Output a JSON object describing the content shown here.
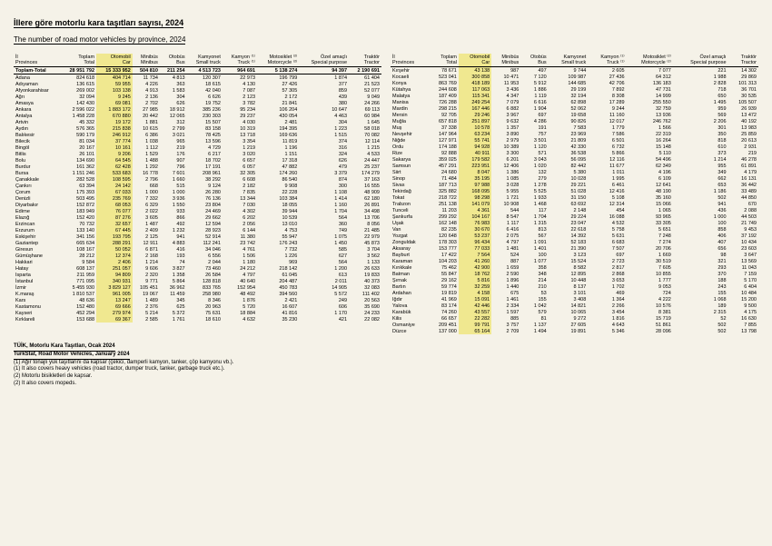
{
  "title_tr": "İllere göre motorlu kara taşıtları sayısı, 2024",
  "title_en": "The number of road motor vehicles by province, 2024",
  "headers": [
    {
      "tr": "İl",
      "en": "Provinces"
    },
    {
      "tr": "Toplam",
      "en": "Total"
    },
    {
      "tr": "Otomobil",
      "en": "Car"
    },
    {
      "tr": "Minibüs",
      "en": "Minibus"
    },
    {
      "tr": "Otobüs",
      "en": "Bus"
    },
    {
      "tr": "Kamyonet",
      "en": "Small truck"
    },
    {
      "tr": "Kamyon ⁽¹⁾",
      "en": "Truck ⁽¹⁾"
    },
    {
      "tr": "Motosiklet ⁽²⁾",
      "en": "Motorcycle ⁽²⁾"
    },
    {
      "tr": "Özel amaçlı",
      "en": "Special purpose"
    },
    {
      "tr": "Traktör",
      "en": "Tractor"
    }
  ],
  "highlight_col": 2,
  "rows_left": [
    {
      "cells": [
        "Toplam-Total",
        "28 951 792",
        "15 333 952",
        "504 810",
        "211 254",
        "4 513 723",
        "964 691",
        "5 138 274",
        "94 397",
        "2 190 691"
      ],
      "total": true
    },
    {
      "cells": [
        "Adana",
        "824 618",
        "404 714",
        "11 734",
        "4 813",
        "120 307",
        "22 973",
        "196 799",
        "1 874",
        "61 404"
      ]
    },
    {
      "cells": [
        "Adıyaman",
        "136 615",
        "59 955",
        "4 226",
        "363",
        "18 615",
        "4 130",
        "27 426",
        "377",
        "21 523"
      ]
    },
    {
      "cells": [
        "Afyonkarahisar",
        "269 002",
        "103 138",
        "4 913",
        "1 583",
        "42 040",
        "7 087",
        "57 305",
        "859",
        "52 077"
      ]
    },
    {
      "cells": [
        "Ağrı",
        "32 094",
        "9 245",
        "2 136",
        "304",
        "6 626",
        "2 123",
        "2 172",
        "439",
        "9 049"
      ]
    },
    {
      "cells": [
        "Amasya",
        "142 430",
        "69 081",
        "2 702",
        "626",
        "19 752",
        "3 782",
        "21 841",
        "380",
        "24 266"
      ]
    },
    {
      "cells": [
        "Ankara",
        "2 596 022",
        "1 883 172",
        "27 985",
        "18 912",
        "385 236",
        "95 234",
        "106 204",
        "10 647",
        "69 113"
      ]
    },
    {
      "cells": [
        "Antalya",
        "1 458 228",
        "670 880",
        "20 442",
        "12 065",
        "230 303",
        "29 237",
        "430 054",
        "4 463",
        "60 984"
      ]
    },
    {
      "cells": [
        "Artvin",
        "45 332",
        "19 172",
        "1 881",
        "312",
        "15 507",
        "4 030",
        "2 481",
        "304",
        "1 645"
      ]
    },
    {
      "cells": [
        "Aydın",
        "576 365",
        "215 838",
        "10 615",
        "2 799",
        "83 158",
        "10 319",
        "194 395",
        "1 223",
        "58 018"
      ]
    },
    {
      "cells": [
        "Balıkesir",
        "590 179",
        "246 912",
        "6 386",
        "3 021",
        "78 425",
        "13 718",
        "169 636",
        "1 515",
        "70 082"
      ]
    },
    {
      "cells": [
        "Bilecik",
        "81 034",
        "37 774",
        "1 038",
        "965",
        "13 596",
        "3 354",
        "11 819",
        "374",
        "12 114"
      ]
    },
    {
      "cells": [
        "Bingöl",
        "20 167",
        "10 161",
        "1 112",
        "219",
        "4 729",
        "1 219",
        "1 196",
        "316",
        "1 215"
      ]
    },
    {
      "cells": [
        "Bitlis",
        "26 101",
        "9 206",
        "1 529",
        "176",
        "6 217",
        "3 020",
        "1 151",
        "324",
        "4 533"
      ]
    },
    {
      "cells": [
        "Bolu",
        "134 690",
        "64 545",
        "1 488",
        "907",
        "18 702",
        "6 657",
        "17 318",
        "626",
        "24 447"
      ]
    },
    {
      "cells": [
        "Burdur",
        "161 362",
        "62 428",
        "1 292",
        "796",
        "17 191",
        "6 057",
        "47 882",
        "479",
        "25 237"
      ]
    },
    {
      "cells": [
        "Bursa",
        "1 151 246",
        "533 683",
        "16 778",
        "7 601",
        "208 961",
        "32 305",
        "174 260",
        "3 379",
        "174 279"
      ]
    },
    {
      "cells": [
        "Çanakkale",
        "282 528",
        "108 595",
        "2 796",
        "1 660",
        "38 292",
        "6 608",
        "86 540",
        "874",
        "37 163"
      ]
    },
    {
      "cells": [
        "Çankırı",
        "63 394",
        "24 142",
        "668",
        "515",
        "9 124",
        "2 182",
        "9 908",
        "300",
        "16 555"
      ]
    },
    {
      "cells": [
        "Çorum",
        "175 393",
        "67 033",
        "1 000",
        "1 000",
        "26 280",
        "7 835",
        "22 228",
        "1 108",
        "48 909"
      ]
    },
    {
      "cells": [
        "Denizli",
        "503 495",
        "235 769",
        "7 332",
        "3 936",
        "76 136",
        "13 344",
        "103 384",
        "1 414",
        "62 180"
      ]
    },
    {
      "cells": [
        "Diyarbakır",
        "152 872",
        "68 053",
        "6 329",
        "1 550",
        "23 804",
        "7 030",
        "18 055",
        "1 160",
        "26 891"
      ]
    },
    {
      "cells": [
        "Edirne",
        "183 949",
        "76 077",
        "2 022",
        "933",
        "24 469",
        "4 302",
        "39 944",
        "1 704",
        "34 498"
      ]
    },
    {
      "cells": [
        "Elazığ",
        "152 420",
        "87 276",
        "3 605",
        "866",
        "29 662",
        "6 202",
        "10 539",
        "564",
        "13 706"
      ]
    },
    {
      "cells": [
        "Erzincan",
        "70 732",
        "32 657",
        "1 487",
        "492",
        "12 594",
        "2 056",
        "13 010",
        "360",
        "8 056"
      ]
    },
    {
      "cells": [
        "Erzurum",
        "133 140",
        "67 445",
        "2 409",
        "1 232",
        "28 923",
        "6 144",
        "4 753",
        "749",
        "21 485"
      ]
    },
    {
      "cells": [
        "Eskişehir",
        "341 156",
        "193 795",
        "2 125",
        "941",
        "52 914",
        "11 380",
        "55 947",
        "1 075",
        "22 979"
      ]
    },
    {
      "cells": [
        "Gaziantep",
        "665 634",
        "288 291",
        "12 911",
        "4 883",
        "112 241",
        "23 742",
        "176 243",
        "1 450",
        "45 873"
      ]
    },
    {
      "cells": [
        "Giresun",
        "108 167",
        "50 052",
        "6 871",
        "416",
        "34 046",
        "4 761",
        "7 732",
        "585",
        "3 704"
      ]
    },
    {
      "cells": [
        "Gümüşhane",
        "28 212",
        "12 374",
        "2 168",
        "193",
        "6 556",
        "1 506",
        "1 226",
        "627",
        "3 562"
      ]
    },
    {
      "cells": [
        "Hakkari",
        "9 584",
        "2 406",
        "1 214",
        "74",
        "2 044",
        "1 180",
        "969",
        "564",
        "1 133"
      ]
    },
    {
      "cells": [
        "Hatay",
        "608 137",
        "251 057",
        "9 606",
        "3 827",
        "73 460",
        "24 212",
        "218 142",
        "1 200",
        "26 633"
      ]
    },
    {
      "cells": [
        "Isparta",
        "211 959",
        "94 809",
        "2 320",
        "1 358",
        "26 584",
        "4 797",
        "61 045",
        "613",
        "19 833"
      ]
    },
    {
      "cells": [
        "İstanbul",
        "771 095",
        "340 931",
        "9 771",
        "5 864",
        "128 818",
        "40 640",
        "204 487",
        "2 011",
        "40 373"
      ]
    },
    {
      "cells": [
        "İzmir",
        "5 455 930",
        "3 829 127",
        "105 451",
        "36 962",
        "833 765",
        "152 954",
        "450 783",
        "14 905",
        "32 083"
      ]
    },
    {
      "cells": [
        "K.maraş",
        "1 810 537",
        "961 005",
        "19 067",
        "11 459",
        "258 980",
        "48 492",
        "394 560",
        "5 572",
        "111 402"
      ]
    },
    {
      "cells": [
        "Kars",
        "48 636",
        "13 247",
        "1 489",
        "345",
        "8 346",
        "1 876",
        "2 421",
        "249",
        "20 563"
      ]
    },
    {
      "cells": [
        "Kastamonu",
        "152 480",
        "69 666",
        "2 376",
        "625",
        "20 963",
        "5 720",
        "16 607",
        "606",
        "35 690"
      ]
    },
    {
      "cells": [
        "Kayseri",
        "452 294",
        "279 974",
        "5 214",
        "5 372",
        "75 631",
        "18 884",
        "41 816",
        "1 170",
        "24 233"
      ]
    },
    {
      "cells": [
        "Kırklareli",
        "153 688",
        "69 367",
        "2 585",
        "1 761",
        "18 610",
        "4 632",
        "35 230",
        "421",
        "22 082"
      ]
    }
  ],
  "rows_right": [
    {
      "cells": [
        "Kırşehir",
        "78 671",
        "43 138",
        "987",
        "497",
        "9 744",
        "2 605",
        "7 077",
        "221",
        "14 302"
      ]
    },
    {
      "cells": [
        "Kocaeli",
        "523 041",
        "300 858",
        "10 471",
        "7 120",
        "109 987",
        "27 436",
        "64 312",
        "1 988",
        "29 869"
      ]
    },
    {
      "cells": [
        "Konya",
        "863 769",
        "418 189",
        "11 953",
        "5 912",
        "144 685",
        "42 706",
        "136 183",
        "2 828",
        "101 313"
      ]
    },
    {
      "cells": [
        "Kütahya",
        "244 608",
        "117 063",
        "3 436",
        "1 886",
        "29 199",
        "7 892",
        "47 731",
        "718",
        "36 701"
      ]
    },
    {
      "cells": [
        "Malatya",
        "187 409",
        "115 341",
        "4 347",
        "1 119",
        "32 194",
        "8 308",
        "14 999",
        "650",
        "30 535"
      ]
    },
    {
      "cells": [
        "Manisa",
        "726 288",
        "249 254",
        "7 079",
        "6 616",
        "62 898",
        "17 289",
        "255 550",
        "1 495",
        "105 507"
      ]
    },
    {
      "cells": [
        "Mardin",
        "298 215",
        "167 446",
        "6 882",
        "1 904",
        "52 062",
        "9 244",
        "32 759",
        "959",
        "26 939"
      ]
    },
    {
      "cells": [
        "Mersin",
        "92 705",
        "29 246",
        "3 967",
        "697",
        "19 658",
        "11 160",
        "13 936",
        "569",
        "13 472"
      ]
    },
    {
      "cells": [
        "Muğla",
        "657 818",
        "251 897",
        "9 632",
        "4 286",
        "90 826",
        "12 017",
        "246 762",
        "2 206",
        "40 192"
      ]
    },
    {
      "cells": [
        "Muş",
        "37 338",
        "10 578",
        "1 357",
        "191",
        "7 583",
        "1 779",
        "1 566",
        "301",
        "13 983"
      ]
    },
    {
      "cells": [
        "Nevşehir",
        "147 964",
        "63 234",
        "3 890",
        "757",
        "23 969",
        "7 586",
        "22 319",
        "350",
        "25 859"
      ]
    },
    {
      "cells": [
        "Niğde",
        "127 971",
        "55 741",
        "2 979",
        "3 501",
        "21 809",
        "6 501",
        "16 264",
        "818",
        "20 613"
      ]
    },
    {
      "cells": [
        "Ordu",
        "174 188",
        "94 928",
        "10 389",
        "1 120",
        "42 330",
        "6 732",
        "15 148",
        "610",
        "2 931"
      ]
    },
    {
      "cells": [
        "Rize",
        "92 888",
        "40 911",
        "3 300",
        "571",
        "36 538",
        "5 866",
        "5 110",
        "373",
        "219"
      ]
    },
    {
      "cells": [
        "Sakarya",
        "359 025",
        "179 582",
        "6 201",
        "3 043",
        "56 095",
        "12 116",
        "54 496",
        "1 214",
        "46 278"
      ]
    },
    {
      "cells": [
        "Samsun",
        "457 291",
        "223 951",
        "12 406",
        "1 020",
        "82 442",
        "11 677",
        "62 349",
        "955",
        "61 891"
      ]
    },
    {
      "cells": [
        "Siirt",
        "24 680",
        "8 047",
        "1 386",
        "132",
        "5 380",
        "1 011",
        "4 196",
        "349",
        "4 179"
      ]
    },
    {
      "cells": [
        "Sinop",
        "71 484",
        "35 195",
        "1 085",
        "279",
        "10 028",
        "1 995",
        "6 109",
        "662",
        "16 131"
      ]
    },
    {
      "cells": [
        "Sivas",
        "187 713",
        "97 988",
        "3 028",
        "1 278",
        "29 221",
        "6 461",
        "12 641",
        "653",
        "36 442"
      ]
    },
    {
      "cells": [
        "Tekirdağ",
        "325 882",
        "168 095",
        "5 955",
        "5 525",
        "51 028",
        "12 416",
        "48 190",
        "1 186",
        "33 489"
      ]
    },
    {
      "cells": [
        "Tokat",
        "218 722",
        "98 298",
        "1 721",
        "1 933",
        "31 150",
        "5 108",
        "35 160",
        "502",
        "44 850"
      ]
    },
    {
      "cells": [
        "Trabzon",
        "251 138",
        "141 079",
        "10 908",
        "1 468",
        "63 692",
        "12 314",
        "15 066",
        "941",
        "670"
      ]
    },
    {
      "cells": [
        "Tunceli",
        "11 203",
        "4 361",
        "544",
        "117",
        "2 148",
        "454",
        "1 065",
        "436",
        "2 088"
      ]
    },
    {
      "cells": [
        "Şanlıurfa",
        "299 292",
        "104 167",
        "8 547",
        "1 704",
        "29 224",
        "16 088",
        "93 965",
        "1 000",
        "44 503"
      ]
    },
    {
      "cells": [
        "Uşak",
        "162 148",
        "76 983",
        "1 117",
        "1 315",
        "23 047",
        "4 532",
        "33 305",
        "100",
        "21 749"
      ]
    },
    {
      "cells": [
        "Van",
        "82 235",
        "30 670",
        "6 416",
        "813",
        "22 618",
        "5 758",
        "5 651",
        "858",
        "9 453"
      ]
    },
    {
      "cells": [
        "Yozgat",
        "120 648",
        "53 237",
        "2 075",
        "567",
        "14 392",
        "5 631",
        "7 248",
        "406",
        "37 192"
      ]
    },
    {
      "cells": [
        "Zonguldak",
        "178 303",
        "96 434",
        "4 797",
        "1 091",
        "52 183",
        "6 683",
        "7 274",
        "407",
        "10 434"
      ]
    },
    {
      "cells": [
        "Aksaray",
        "153 777",
        "77 033",
        "1 481",
        "1 401",
        "21 390",
        "7 507",
        "20 706",
        "656",
        "23 603"
      ]
    },
    {
      "cells": [
        "Bayburt",
        "17 422",
        "7 564",
        "524",
        "100",
        "3 123",
        "697",
        "1 669",
        "98",
        "3 647"
      ]
    },
    {
      "cells": [
        "Karaman",
        "104 203",
        "41 260",
        "887",
        "1 077",
        "15 524",
        "2 723",
        "30 519",
        "321",
        "13 569"
      ]
    },
    {
      "cells": [
        "Kırıkkale",
        "75 462",
        "42 900",
        "1 659",
        "358",
        "8 582",
        "2 817",
        "7 605",
        "293",
        "11 043"
      ]
    },
    {
      "cells": [
        "Batman",
        "55 847",
        "18 762",
        "2 590",
        "348",
        "12 895",
        "2 868",
        "10 855",
        "370",
        "7 159"
      ]
    },
    {
      "cells": [
        "Şırnak",
        "29 162",
        "5 816",
        "1 896",
        "214",
        "10 448",
        "3 653",
        "1 777",
        "188",
        "5 170"
      ]
    },
    {
      "cells": [
        "Bartın",
        "59 774",
        "32 259",
        "1 440",
        "210",
        "8 137",
        "1 702",
        "9 053",
        "243",
        "6 404"
      ]
    },
    {
      "cells": [
        "Ardahan",
        "19 819",
        "4 158",
        "675",
        "53",
        "3 101",
        "469",
        "724",
        "155",
        "10 484"
      ]
    },
    {
      "cells": [
        "Iğdır",
        "41 969",
        "15 091",
        "1 461",
        "155",
        "3 408",
        "1 364",
        "4 222",
        "1 068",
        "15 200"
      ]
    },
    {
      "cells": [
        "Yalova",
        "83 174",
        "42 446",
        "2 334",
        "1 042",
        "14 821",
        "2 266",
        "10 576",
        "189",
        "9 500"
      ]
    },
    {
      "cells": [
        "Karabük",
        "74 260",
        "43 557",
        "1 597",
        "579",
        "10 065",
        "3 454",
        "8 381",
        "2 315",
        "4 175"
      ]
    },
    {
      "cells": [
        "Kilis",
        "66 657",
        "22 282",
        "885",
        "81",
        "9 272",
        "1 816",
        "15 719",
        "52",
        "16 630"
      ]
    },
    {
      "cells": [
        "Osmaniye",
        "209 451",
        "99 791",
        "3 757",
        "1 137",
        "27 605",
        "4 643",
        "51 861",
        "502",
        "7 855"
      ]
    },
    {
      "cells": [
        "Düzce",
        "137 000",
        "65 164",
        "2 709",
        "1 494",
        "19 891",
        "5 346",
        "28 096",
        "502",
        "13 798"
      ]
    }
  ],
  "footnotes": {
    "title_tr": "TÜİK, Motorlu Kara Taşıtları, Ocak 2024",
    "title_en": "TurkStat, Road Motor Vehicles, January 2024",
    "notes": [
      "(1) Ağır tonajlı yük taşıtlarını da kapsar (çekici, damperli kamyon, tanker, çöp kamyonu vb.).",
      "(1) It also covers heavy vehicles (road tractor, dumper truck, tanker, garbage truck etc.).",
      "(2) Motorlu bisikletleri de kapsar.",
      "(2) It also covers mopeds."
    ]
  }
}
